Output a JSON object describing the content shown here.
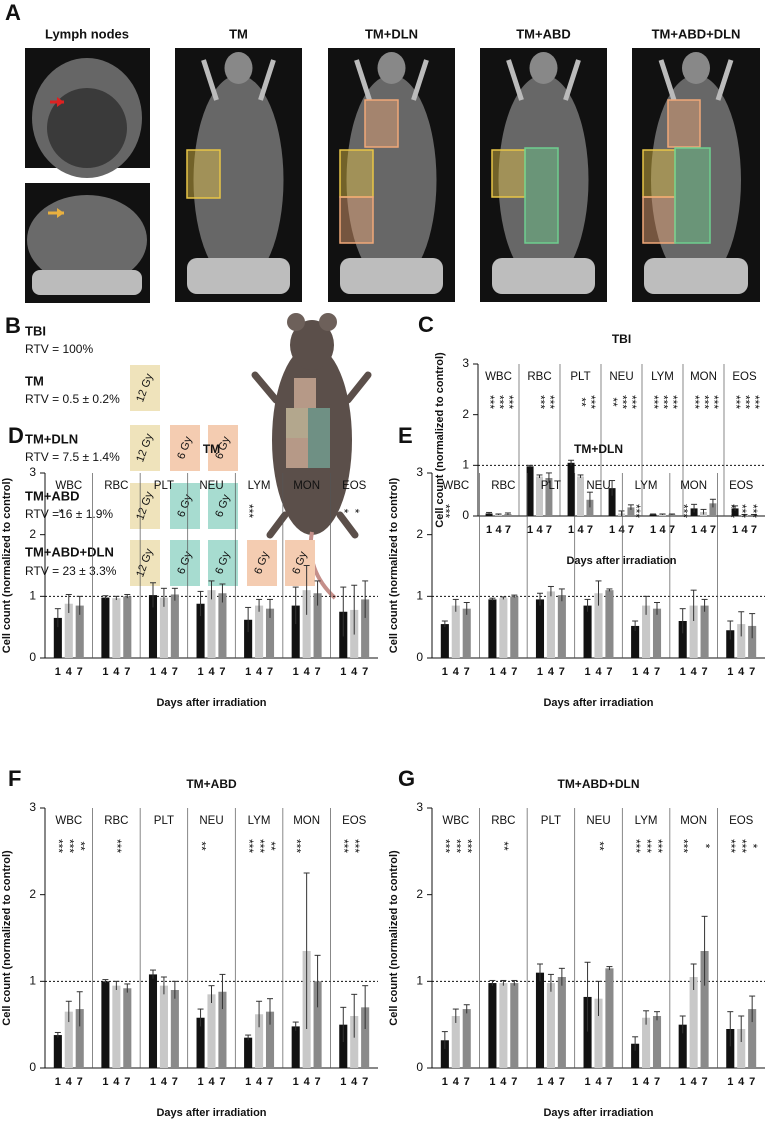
{
  "panel_a": {
    "label": "A",
    "images": [
      "Lymph nodes",
      "TM",
      "TM+DLN",
      "TM+ABD",
      "TM+ABD+DLN"
    ]
  },
  "panel_b": {
    "label": "B",
    "plans": [
      {
        "name": "TBI",
        "rtv": "RTV = 100%",
        "doses": []
      },
      {
        "name": "TM",
        "rtv": "RTV = 0.5 ± 0.2%",
        "doses": [
          {
            "label": "12 Gy",
            "color": "#efe3bb"
          }
        ]
      },
      {
        "name": "TM+DLN",
        "rtv": "RTV = 7.5 ± 1.4%",
        "doses": [
          {
            "label": "12 Gy",
            "color": "#efe3bb"
          },
          {
            "label": "6 Gy",
            "color": "#f4ccb1"
          },
          {
            "label": "6 Gy",
            "color": "#f4ccb1"
          }
        ]
      },
      {
        "name": "TM+ABD",
        "rtv": "RTV =16 ± 1.9%",
        "doses": [
          {
            "label": "12 Gy",
            "color": "#efe3bb"
          },
          {
            "label": "6 Gy",
            "color": "#a7dcd0"
          },
          {
            "label": "6 Gy",
            "color": "#a7dcd0"
          }
        ]
      },
      {
        "name": "TM+ABD+DLN",
        "rtv": "RTV = 23 ± 3.3%",
        "doses": [
          {
            "label": "12 Gy",
            "color": "#efe3bb"
          },
          {
            "label": "6 Gy",
            "color": "#a7dcd0"
          },
          {
            "label": "6 Gy",
            "color": "#a7dcd0"
          },
          {
            "label": "6 Gy",
            "color": "#f4ccb1"
          },
          {
            "label": "6 Gy",
            "color": "#f4ccb1"
          }
        ]
      }
    ]
  },
  "chart_data": [
    {
      "type": "bar",
      "panel": "C",
      "title": "TBI",
      "ylabel": "Cell count (normalized to control)",
      "xlabel": "Days after irradiation",
      "categories": [
        "WBC",
        "RBC",
        "PLT",
        "NEU",
        "LYM",
        "MON",
        "EOS"
      ],
      "days": [
        "1",
        "4",
        "7"
      ],
      "ylim": [
        0,
        3
      ],
      "yticks": [
        0,
        1,
        2,
        3
      ],
      "reference_line": 1,
      "series": [
        {
          "color": "#111111",
          "values": [
            0.05,
            0.98,
            1.05,
            0.55,
            0.03,
            0.15,
            0.15
          ],
          "errors": [
            0.02,
            0.02,
            0.05,
            0.15,
            0.01,
            0.08,
            0.05
          ],
          "significance": [
            "***",
            null,
            null,
            "**",
            "***",
            "***",
            "***"
          ]
        },
        {
          "color": "#c8c8c8",
          "values": [
            0.03,
            0.78,
            0.78,
            0.05,
            0.03,
            0.08,
            0.02
          ],
          "errors": [
            0.01,
            0.03,
            0.03,
            0.05,
            0.01,
            0.05,
            0.01
          ],
          "significance": [
            "***",
            "***",
            "**",
            "***",
            "***",
            "***",
            "***"
          ]
        },
        {
          "color": "#8a8a8a",
          "values": [
            0.04,
            0.75,
            0.32,
            0.17,
            0.03,
            0.25,
            0.02
          ],
          "errors": [
            0.02,
            0.1,
            0.15,
            0.05,
            0.01,
            0.08,
            0.01
          ],
          "significance": [
            "***",
            "***",
            "***",
            "***",
            "***",
            "***",
            "***"
          ]
        }
      ]
    },
    {
      "type": "bar",
      "panel": "D",
      "title": "TM",
      "ylabel": "Cell count (normalized to control)",
      "xlabel": "Days after irradiation",
      "categories": [
        "WBC",
        "RBC",
        "PLT",
        "NEU",
        "LYM",
        "MON",
        "EOS"
      ],
      "days": [
        "1",
        "4",
        "7"
      ],
      "ylim": [
        0,
        3
      ],
      "yticks": [
        0,
        1,
        2,
        3
      ],
      "reference_line": 1,
      "series": [
        {
          "color": "#111111",
          "values": [
            0.65,
            0.98,
            1.02,
            0.88,
            0.62,
            0.85,
            0.75
          ],
          "errors": [
            0.15,
            0.03,
            0.2,
            0.2,
            0.2,
            0.3,
            0.4
          ],
          "significance": [
            "*",
            null,
            null,
            null,
            "***",
            null,
            "*"
          ]
        },
        {
          "color": "#c8c8c8",
          "values": [
            0.88,
            0.97,
            0.98,
            1.1,
            0.85,
            1.1,
            0.78
          ],
          "errors": [
            0.15,
            0.03,
            0.15,
            0.15,
            0.1,
            0.4,
            0.4
          ],
          "significance": [
            null,
            null,
            null,
            null,
            null,
            null,
            "*"
          ]
        },
        {
          "color": "#8a8a8a",
          "values": [
            0.85,
            1.0,
            1.03,
            1.05,
            0.8,
            1.05,
            0.95
          ],
          "errors": [
            0.15,
            0.03,
            0.1,
            0.15,
            0.15,
            0.2,
            0.3
          ],
          "significance": [
            null,
            null,
            null,
            null,
            null,
            null,
            null
          ]
        }
      ]
    },
    {
      "type": "bar",
      "panel": "E",
      "title": "TM+DLN",
      "ylabel": "Cell count (normalized to control)",
      "xlabel": "Days after irradiation",
      "categories": [
        "WBC",
        "RBC",
        "PLT",
        "NEU",
        "LYM",
        "MON",
        "EOS"
      ],
      "days": [
        "1",
        "4",
        "7"
      ],
      "ylim": [
        0,
        3
      ],
      "yticks": [
        0,
        1,
        2,
        3
      ],
      "reference_line": 1,
      "series": [
        {
          "color": "#111111",
          "values": [
            0.55,
            0.95,
            0.95,
            0.85,
            0.52,
            0.6,
            0.45
          ],
          "errors": [
            0.05,
            0.02,
            0.1,
            0.1,
            0.08,
            0.2,
            0.15
          ],
          "significance": [
            "***",
            null,
            null,
            null,
            "***",
            "***",
            "***"
          ]
        },
        {
          "color": "#c8c8c8",
          "values": [
            0.85,
            0.97,
            1.08,
            1.05,
            0.85,
            0.85,
            0.55
          ],
          "errors": [
            0.1,
            0.02,
            0.08,
            0.2,
            0.15,
            0.25,
            0.2
          ],
          "significance": [
            null,
            null,
            null,
            null,
            null,
            null,
            "***"
          ]
        },
        {
          "color": "#8a8a8a",
          "values": [
            0.8,
            1.0,
            1.02,
            1.1,
            0.8,
            0.85,
            0.52
          ],
          "errors": [
            0.1,
            0.02,
            0.1,
            0.02,
            0.1,
            0.1,
            0.2
          ],
          "significance": [
            null,
            null,
            null,
            null,
            null,
            null,
            "***"
          ]
        }
      ]
    },
    {
      "type": "bar",
      "panel": "F",
      "title": "TM+ABD",
      "ylabel": "Cell count (normalized to control)",
      "xlabel": "Days after irradiation",
      "categories": [
        "WBC",
        "RBC",
        "PLT",
        "NEU",
        "LYM",
        "MON",
        "EOS"
      ],
      "days": [
        "1",
        "4",
        "7"
      ],
      "ylim": [
        0,
        3
      ],
      "yticks": [
        0,
        1,
        2,
        3
      ],
      "reference_line": 1,
      "series": [
        {
          "color": "#111111",
          "values": [
            0.38,
            1.0,
            1.08,
            0.58,
            0.35,
            0.48,
            0.5
          ],
          "errors": [
            0.03,
            0.02,
            0.05,
            0.1,
            0.03,
            0.05,
            0.2
          ],
          "significance": [
            "***",
            null,
            null,
            "**",
            "***",
            "***",
            "***"
          ]
        },
        {
          "color": "#c8c8c8",
          "values": [
            0.65,
            0.95,
            0.95,
            0.85,
            0.62,
            1.35,
            0.6
          ],
          "errors": [
            0.12,
            0.05,
            0.1,
            0.1,
            0.15,
            0.9,
            0.25
          ],
          "significance": [
            "***",
            "***",
            null,
            null,
            "***",
            null,
            "***"
          ]
        },
        {
          "color": "#8a8a8a",
          "values": [
            0.68,
            0.92,
            0.9,
            0.88,
            0.65,
            1.0,
            0.7
          ],
          "errors": [
            0.2,
            0.05,
            0.1,
            0.2,
            0.15,
            0.3,
            0.25
          ],
          "significance": [
            "**",
            null,
            null,
            null,
            "**",
            null,
            null
          ]
        }
      ]
    },
    {
      "type": "bar",
      "panel": "G",
      "title": "TM+ABD+DLN",
      "ylabel": "Cell count (normalized to control)",
      "xlabel": "Days after irradiation",
      "categories": [
        "WBC",
        "RBC",
        "PLT",
        "NEU",
        "LYM",
        "MON",
        "EOS"
      ],
      "days": [
        "1",
        "4",
        "7"
      ],
      "ylim": [
        0,
        3
      ],
      "yticks": [
        0,
        1,
        2,
        3
      ],
      "reference_line": 1,
      "series": [
        {
          "color": "#111111",
          "values": [
            0.32,
            0.98,
            1.1,
            0.82,
            0.28,
            0.5,
            0.45
          ],
          "errors": [
            0.1,
            0.03,
            0.1,
            0.4,
            0.08,
            0.1,
            0.2
          ],
          "significance": [
            "***",
            null,
            null,
            null,
            "***",
            "***",
            "***"
          ]
        },
        {
          "color": "#c8c8c8",
          "values": [
            0.6,
            0.98,
            0.98,
            0.8,
            0.58,
            1.05,
            0.45
          ],
          "errors": [
            0.08,
            0.03,
            0.1,
            0.2,
            0.08,
            0.15,
            0.15
          ],
          "significance": [
            "***",
            "**",
            null,
            "**",
            "***",
            null,
            "***"
          ]
        },
        {
          "color": "#8a8a8a",
          "values": [
            0.68,
            0.98,
            1.05,
            1.15,
            0.6,
            1.35,
            0.68
          ],
          "errors": [
            0.05,
            0.03,
            0.1,
            0.02,
            0.05,
            0.4,
            0.15
          ],
          "significance": [
            "***",
            null,
            null,
            null,
            "***",
            "*",
            "*"
          ]
        }
      ]
    }
  ]
}
